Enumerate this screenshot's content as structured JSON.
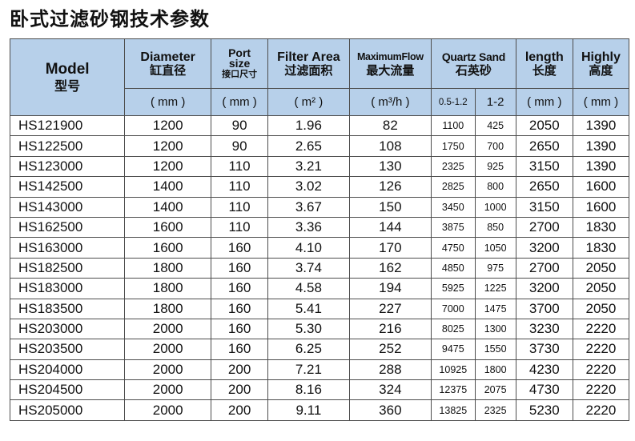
{
  "title": "卧式过滤砂钢技术参数",
  "headers": {
    "model_en": "Model",
    "model_cn": "型号",
    "diameter_en": "Diameter",
    "diameter_cn": "缸直径",
    "port_en_1": "Port",
    "port_en_2": "size",
    "port_cn": "接口尺寸",
    "filter_en": "Filter Area",
    "filter_cn": "过滤面积",
    "flow_en": "MaximumFlow",
    "flow_cn": "最大流量",
    "sand_en": "Quartz Sand",
    "sand_cn": "石英砂",
    "length_en": "length",
    "length_cn": "长度",
    "height_en": "Highly",
    "height_cn": "高度"
  },
  "units": {
    "diameter": "( mm )",
    "port": "( mm )",
    "filter": "( m² )",
    "flow": "( m³/h )",
    "sand_a": "0.5-1.2",
    "sand_b": "1-2",
    "length": "( mm )",
    "height": "( mm )"
  },
  "rows": [
    {
      "model": "HS121900",
      "diameter": "1200",
      "port": "90",
      "filter_area": "1.96",
      "max_flow": "82",
      "sand_a": "1100",
      "sand_b": "425",
      "length": "2050",
      "height": "1390"
    },
    {
      "model": "HS122500",
      "diameter": "1200",
      "port": "90",
      "filter_area": "2.65",
      "max_flow": "108",
      "sand_a": "1750",
      "sand_b": "700",
      "length": "2650",
      "height": "1390"
    },
    {
      "model": "HS123000",
      "diameter": "1200",
      "port": "110",
      "filter_area": "3.21",
      "max_flow": "130",
      "sand_a": "2325",
      "sand_b": "925",
      "length": "3150",
      "height": "1390"
    },
    {
      "model": "HS142500",
      "diameter": "1400",
      "port": "110",
      "filter_area": "3.02",
      "max_flow": "126",
      "sand_a": "2825",
      "sand_b": "800",
      "length": "2650",
      "height": "1600"
    },
    {
      "model": "HS143000",
      "diameter": "1400",
      "port": "110",
      "filter_area": "3.67",
      "max_flow": "150",
      "sand_a": "3450",
      "sand_b": "1000",
      "length": "3150",
      "height": "1600"
    },
    {
      "model": "HS162500",
      "diameter": "1600",
      "port": "110",
      "filter_area": "3.36",
      "max_flow": "144",
      "sand_a": "3875",
      "sand_b": "850",
      "length": "2700",
      "height": "1830"
    },
    {
      "model": "HS163000",
      "diameter": "1600",
      "port": "160",
      "filter_area": "4.10",
      "max_flow": "170",
      "sand_a": "4750",
      "sand_b": "1050",
      "length": "3200",
      "height": "1830"
    },
    {
      "model": "HS182500",
      "diameter": "1800",
      "port": "160",
      "filter_area": "3.74",
      "max_flow": "162",
      "sand_a": "4850",
      "sand_b": "975",
      "length": "2700",
      "height": "2050"
    },
    {
      "model": "HS183000",
      "diameter": "1800",
      "port": "160",
      "filter_area": "4.58",
      "max_flow": "194",
      "sand_a": "5925",
      "sand_b": "1225",
      "length": "3200",
      "height": "2050"
    },
    {
      "model": "HS183500",
      "diameter": "1800",
      "port": "160",
      "filter_area": "5.41",
      "max_flow": "227",
      "sand_a": "7000",
      "sand_b": "1475",
      "length": "3700",
      "height": "2050"
    },
    {
      "model": "HS203000",
      "diameter": "2000",
      "port": "160",
      "filter_area": "5.30",
      "max_flow": "216",
      "sand_a": "8025",
      "sand_b": "1300",
      "length": "3230",
      "height": "2220"
    },
    {
      "model": "HS203500",
      "diameter": "2000",
      "port": "160",
      "filter_area": "6.25",
      "max_flow": "252",
      "sand_a": "9475",
      "sand_b": "1550",
      "length": "3730",
      "height": "2220"
    },
    {
      "model": "HS204000",
      "diameter": "2000",
      "port": "200",
      "filter_area": "7.21",
      "max_flow": "288",
      "sand_a": "10925",
      "sand_b": "1800",
      "length": "4230",
      "height": "2220"
    },
    {
      "model": "HS204500",
      "diameter": "2000",
      "port": "200",
      "filter_area": "8.16",
      "max_flow": "324",
      "sand_a": "12375",
      "sand_b": "2075",
      "length": "4730",
      "height": "2220"
    },
    {
      "model": "HS205000",
      "diameter": "2000",
      "port": "200",
      "filter_area": "9.11",
      "max_flow": "360",
      "sand_a": "13825",
      "sand_b": "2325",
      "length": "5230",
      "height": "2220"
    }
  ],
  "colors": {
    "header_bg": "#b7d0ea",
    "border": "#4d4d4d"
  }
}
